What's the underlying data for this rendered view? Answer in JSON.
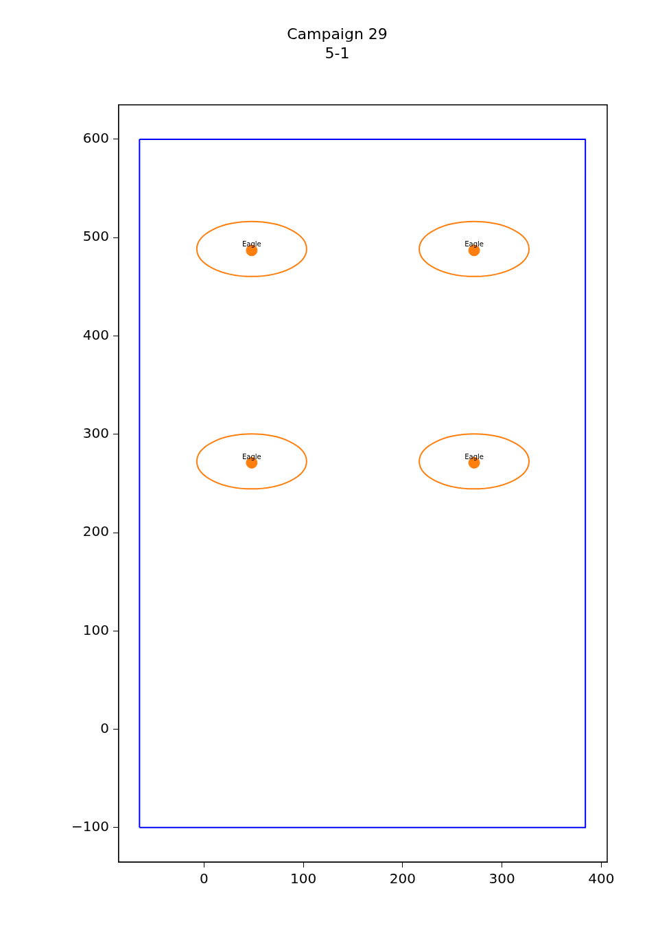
{
  "chart_data": {
    "type": "scatter",
    "title": "Campaign 29",
    "subtitle": "5-1",
    "xlim": [
      -86,
      406
    ],
    "ylim": [
      -135,
      635
    ],
    "xticks": [
      0,
      100,
      200,
      300,
      400
    ],
    "yticks": [
      -100,
      0,
      100,
      200,
      300,
      400,
      500,
      600
    ],
    "grid": false,
    "legend": false,
    "series": [
      {
        "type": "line",
        "marker": "none",
        "color": "#0000ff",
        "x": [
          -65,
          384
        ],
        "values": [
          600,
          600
        ]
      },
      {
        "type": "line",
        "marker": "none",
        "color": "#0000ff",
        "x": [
          384,
          384
        ],
        "values": [
          600,
          -100
        ]
      },
      {
        "type": "line",
        "marker": "none",
        "color": "#0000ff",
        "x": [
          -65,
          384
        ],
        "values": [
          -100,
          -100
        ]
      },
      {
        "type": "line",
        "marker": "none",
        "color": "#0000ff",
        "x": [
          -65,
          -65
        ],
        "values": [
          -100,
          600
        ]
      },
      {
        "type": "scatter",
        "marker": "circle",
        "color": "#ff7f0e",
        "x": [
          48,
          272,
          48,
          272
        ],
        "values": [
          487,
          487,
          271,
          271
        ],
        "value_labels": [
          "Eagle",
          "Eagle",
          "Eagle",
          "Eagle"
        ]
      }
    ]
  }
}
